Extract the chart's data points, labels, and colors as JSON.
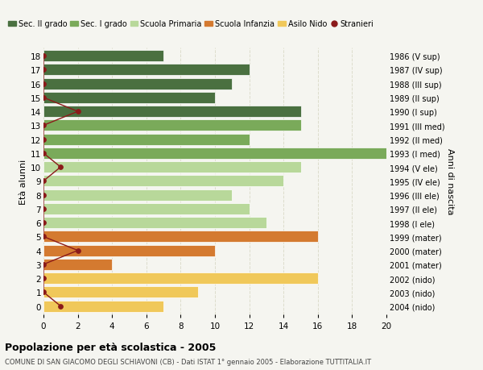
{
  "ages": [
    18,
    17,
    16,
    15,
    14,
    13,
    12,
    11,
    10,
    9,
    8,
    7,
    6,
    5,
    4,
    3,
    2,
    1,
    0
  ],
  "years": [
    "1986 (V sup)",
    "1987 (IV sup)",
    "1988 (III sup)",
    "1989 (II sup)",
    "1990 (I sup)",
    "1991 (III med)",
    "1992 (II med)",
    "1993 (I med)",
    "1994 (V ele)",
    "1995 (IV ele)",
    "1996 (III ele)",
    "1997 (II ele)",
    "1998 (I ele)",
    "1999 (mater)",
    "2000 (mater)",
    "2001 (mater)",
    "2002 (nido)",
    "2003 (nido)",
    "2004 (nido)"
  ],
  "values": [
    7,
    12,
    11,
    10,
    15,
    15,
    12,
    20,
    15,
    14,
    11,
    12,
    13,
    16,
    10,
    4,
    16,
    9,
    7
  ],
  "colors": [
    "#4a7040",
    "#4a7040",
    "#4a7040",
    "#4a7040",
    "#4a7040",
    "#7aaa5a",
    "#7aaa5a",
    "#7aaa5a",
    "#b8d89a",
    "#b8d89a",
    "#b8d89a",
    "#b8d89a",
    "#b8d89a",
    "#d47a30",
    "#d47a30",
    "#d47a30",
    "#f0c85a",
    "#f0c85a",
    "#f0c85a"
  ],
  "stranieri_data": [
    {
      "age": 18,
      "x": 0
    },
    {
      "age": 17,
      "x": 0
    },
    {
      "age": 16,
      "x": 0
    },
    {
      "age": 15,
      "x": 0
    },
    {
      "age": 14,
      "x": 2
    },
    {
      "age": 13,
      "x": 0
    },
    {
      "age": 12,
      "x": 0
    },
    {
      "age": 11,
      "x": 0
    },
    {
      "age": 10,
      "x": 1
    },
    {
      "age": 9,
      "x": 0
    },
    {
      "age": 8,
      "x": 0
    },
    {
      "age": 7,
      "x": 0
    },
    {
      "age": 6,
      "x": 0
    },
    {
      "age": 5,
      "x": 0
    },
    {
      "age": 4,
      "x": 2
    },
    {
      "age": 3,
      "x": 0
    },
    {
      "age": 2,
      "x": 0
    },
    {
      "age": 1,
      "x": 0
    },
    {
      "age": 0,
      "x": 1
    }
  ],
  "color_sec2": "#4a7040",
  "color_sec1": "#7aaa5a",
  "color_primaria": "#b8d89a",
  "color_infanzia": "#d47a30",
  "color_nido": "#f0c85a",
  "color_stranieri": "#8b1a1a",
  "title": "Popolazione per età scolastica - 2005",
  "subtitle": "COMUNE DI SAN GIACOMO DEGLI SCHIAVONI (CB) - Dati ISTAT 1° gennaio 2005 - Elaborazione TUTTITALIA.IT",
  "ylabel": "Età alunni",
  "right_label": "Anni di nascita",
  "xlim": [
    0,
    20
  ],
  "xticks": [
    0,
    2,
    4,
    6,
    8,
    10,
    12,
    14,
    16,
    18,
    20
  ],
  "background_color": "#f5f5f0",
  "bar_height": 0.82,
  "grid_color": "#ddddcc"
}
